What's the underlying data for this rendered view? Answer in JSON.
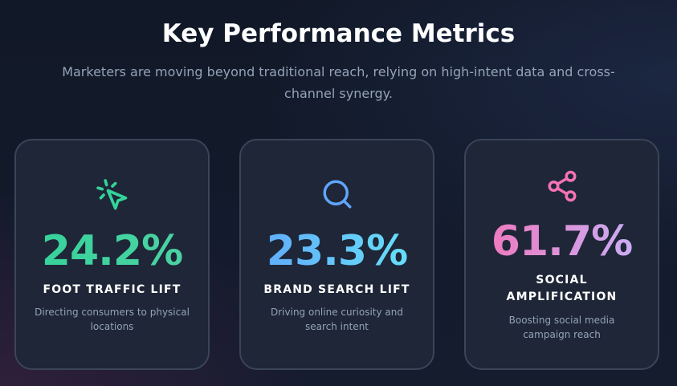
{
  "header": {
    "title": "Key Performance Metrics",
    "subtitle": "Marketers are moving beyond traditional reach, relying on high-intent data and cross-channel synergy."
  },
  "metrics": [
    {
      "icon": "cursor-click-icon",
      "value": "24.2%",
      "label": "FOOT TRAFFIC LIFT",
      "description": "Directing consumers to physical locations",
      "color": "#34d399"
    },
    {
      "icon": "search-icon",
      "value": "23.3%",
      "label": "BRAND SEARCH LIFT",
      "description": "Driving online curiosity and search intent",
      "color": "#60a5fa"
    },
    {
      "icon": "share-icon",
      "value": "61.7%",
      "label": "SOCIAL AMPLIFICATION",
      "description": "Boosting social media campaign reach",
      "color": "#f472b6"
    }
  ]
}
